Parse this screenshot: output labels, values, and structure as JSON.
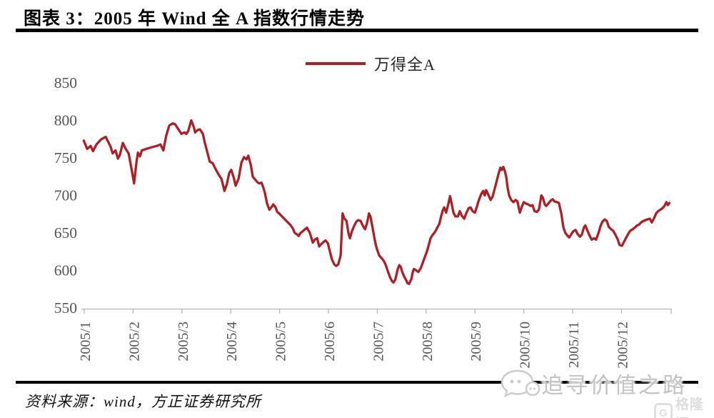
{
  "figure": {
    "title": "图表 3：2005 年 Wind 全 A 指数行情走势",
    "source": "资料来源：wind，方正证券研究所"
  },
  "watermark": {
    "text": "追寻价值之路",
    "logo_text": "格隆汇",
    "logo_letter": "G"
  },
  "colors": {
    "line": "#B01E24",
    "axis": "#b7b7b7",
    "tick_label": "#555555",
    "rule": "#000000"
  },
  "chart_data": {
    "type": "line",
    "title": "2005 年 Wind 全 A 指数行情走势",
    "legend_position": "top-center",
    "grid": false,
    "ylim": [
      550,
      850
    ],
    "y_ticks": [
      850,
      800,
      750,
      700,
      650,
      600,
      550
    ],
    "x_tick_labels": [
      "2005/1",
      "2005/2",
      "2005/3",
      "2005/4",
      "2005/5",
      "2005/6",
      "2005/7",
      "2005/8",
      "2005/9",
      "2005/10",
      "2005/11",
      "2005/12"
    ],
    "x_note": "t is month number of 2005; fractional part = position within month",
    "series": [
      {
        "name": "万得全A",
        "points": [
          [
            0.99,
            773
          ],
          [
            1.06,
            762
          ],
          [
            1.13,
            766
          ],
          [
            1.18,
            759
          ],
          [
            1.25,
            768
          ],
          [
            1.35,
            775
          ],
          [
            1.44,
            778
          ],
          [
            1.54,
            765
          ],
          [
            1.58,
            756
          ],
          [
            1.64,
            760
          ],
          [
            1.69,
            749
          ],
          [
            1.73,
            754
          ],
          [
            1.79,
            770
          ],
          [
            1.85,
            762
          ],
          [
            1.91,
            756
          ],
          [
            1.96,
            738
          ],
          [
            2.02,
            716
          ],
          [
            2.07,
            745
          ],
          [
            2.1,
            757
          ],
          [
            2.14,
            752
          ],
          [
            2.18,
            760
          ],
          [
            2.27,
            762
          ],
          [
            2.37,
            764
          ],
          [
            2.49,
            766
          ],
          [
            2.56,
            768
          ],
          [
            2.62,
            760
          ],
          [
            2.68,
            780
          ],
          [
            2.74,
            793
          ],
          [
            2.81,
            796
          ],
          [
            2.86,
            795
          ],
          [
            2.93,
            788
          ],
          [
            2.99,
            782
          ],
          [
            3.05,
            784
          ],
          [
            3.09,
            782
          ],
          [
            3.13,
            786
          ],
          [
            3.19,
            800
          ],
          [
            3.24,
            792
          ],
          [
            3.27,
            784
          ],
          [
            3.32,
            787
          ],
          [
            3.37,
            788
          ],
          [
            3.43,
            782
          ],
          [
            3.47,
            770
          ],
          [
            3.53,
            755
          ],
          [
            3.57,
            745
          ],
          [
            3.63,
            743
          ],
          [
            3.69,
            735
          ],
          [
            3.75,
            728
          ],
          [
            3.81,
            722
          ],
          [
            3.87,
            706
          ],
          [
            3.92,
            715
          ],
          [
            3.97,
            730
          ],
          [
            4.01,
            734
          ],
          [
            4.06,
            724
          ],
          [
            4.1,
            713
          ],
          [
            4.16,
            722
          ],
          [
            4.22,
            744
          ],
          [
            4.27,
            751
          ],
          [
            4.32,
            748
          ],
          [
            4.36,
            753
          ],
          [
            4.41,
            741
          ],
          [
            4.45,
            725
          ],
          [
            4.49,
            722
          ],
          [
            4.54,
            718
          ],
          [
            4.58,
            716
          ],
          [
            4.63,
            717
          ],
          [
            4.67,
            710
          ],
          [
            4.7,
            703
          ],
          [
            4.74,
            690
          ],
          [
            4.79,
            681
          ],
          [
            4.83,
            684
          ],
          [
            4.87,
            688
          ],
          [
            4.92,
            684
          ],
          [
            4.95,
            678
          ],
          [
            4.99,
            676
          ],
          [
            5.05,
            672
          ],
          [
            5.11,
            668
          ],
          [
            5.17,
            664
          ],
          [
            5.23,
            660
          ],
          [
            5.27,
            656
          ],
          [
            5.31,
            650
          ],
          [
            5.36,
            648
          ],
          [
            5.39,
            646
          ],
          [
            5.43,
            650
          ],
          [
            5.47,
            652
          ],
          [
            5.52,
            655
          ],
          [
            5.56,
            657
          ],
          [
            5.62,
            650
          ],
          [
            5.68,
            637
          ],
          [
            5.72,
            641
          ],
          [
            5.77,
            643
          ],
          [
            5.81,
            632
          ],
          [
            5.85,
            635
          ],
          [
            5.9,
            638
          ],
          [
            5.94,
            640
          ],
          [
            5.99,
            636
          ],
          [
            6.03,
            625
          ],
          [
            6.07,
            615
          ],
          [
            6.12,
            608
          ],
          [
            6.16,
            606
          ],
          [
            6.2,
            608
          ],
          [
            6.25,
            620
          ],
          [
            6.29,
            676
          ],
          [
            6.32,
            670
          ],
          [
            6.37,
            666
          ],
          [
            6.41,
            650
          ],
          [
            6.44,
            643
          ],
          [
            6.48,
            652
          ],
          [
            6.53,
            660
          ],
          [
            6.57,
            665
          ],
          [
            6.61,
            667
          ],
          [
            6.66,
            666
          ],
          [
            6.7,
            660
          ],
          [
            6.75,
            655
          ],
          [
            6.79,
            663
          ],
          [
            6.83,
            676
          ],
          [
            6.86,
            672
          ],
          [
            6.91,
            655
          ],
          [
            6.95,
            640
          ],
          [
            6.99,
            629
          ],
          [
            7.04,
            620
          ],
          [
            7.08,
            617
          ],
          [
            7.13,
            613
          ],
          [
            7.17,
            608
          ],
          [
            7.21,
            600
          ],
          [
            7.26,
            591
          ],
          [
            7.3,
            586
          ],
          [
            7.33,
            584
          ],
          [
            7.37,
            588
          ],
          [
            7.42,
            602
          ],
          [
            7.45,
            607
          ],
          [
            7.48,
            605
          ],
          [
            7.51,
            598
          ],
          [
            7.55,
            592
          ],
          [
            7.59,
            587
          ],
          [
            7.62,
            583
          ],
          [
            7.65,
            582
          ],
          [
            7.7,
            589
          ],
          [
            7.72,
            596
          ],
          [
            7.75,
            602
          ],
          [
            7.8,
            600
          ],
          [
            7.84,
            598
          ],
          [
            7.89,
            603
          ],
          [
            7.93,
            610
          ],
          [
            7.97,
            617
          ],
          [
            8.02,
            626
          ],
          [
            8.05,
            633
          ],
          [
            8.09,
            643
          ],
          [
            8.13,
            647
          ],
          [
            8.18,
            651
          ],
          [
            8.22,
            656
          ],
          [
            8.27,
            662
          ],
          [
            8.31,
            673
          ],
          [
            8.34,
            680
          ],
          [
            8.37,
            684
          ],
          [
            8.41,
            677
          ],
          [
            8.46,
            690
          ],
          [
            8.49,
            699
          ],
          [
            8.51,
            693
          ],
          [
            8.56,
            677
          ],
          [
            8.6,
            672
          ],
          [
            8.65,
            672
          ],
          [
            8.69,
            679
          ],
          [
            8.73,
            673
          ],
          [
            8.78,
            669
          ],
          [
            8.82,
            676
          ],
          [
            8.87,
            683
          ],
          [
            8.91,
            684
          ],
          [
            8.95,
            679
          ],
          [
            9.0,
            677
          ],
          [
            9.04,
            685
          ],
          [
            9.08,
            694
          ],
          [
            9.13,
            702
          ],
          [
            9.17,
            706
          ],
          [
            9.2,
            700
          ],
          [
            9.23,
            707
          ],
          [
            9.28,
            700
          ],
          [
            9.32,
            694
          ],
          [
            9.36,
            698
          ],
          [
            9.41,
            710
          ],
          [
            9.44,
            718
          ],
          [
            9.48,
            728
          ],
          [
            9.52,
            737
          ],
          [
            9.55,
            734
          ],
          [
            9.58,
            738
          ],
          [
            9.61,
            733
          ],
          [
            9.64,
            725
          ],
          [
            9.67,
            710
          ],
          [
            9.7,
            700
          ],
          [
            9.74,
            694
          ],
          [
            9.79,
            691
          ],
          [
            9.83,
            694
          ],
          [
            9.87,
            692
          ],
          [
            9.92,
            677
          ],
          [
            9.96,
            685
          ],
          [
            10.0,
            691
          ],
          [
            10.05,
            689
          ],
          [
            10.09,
            688
          ],
          [
            10.14,
            686
          ],
          [
            10.18,
            687
          ],
          [
            10.22,
            679
          ],
          [
            10.27,
            678
          ],
          [
            10.31,
            681
          ],
          [
            10.36,
            700
          ],
          [
            10.39,
            697
          ],
          [
            10.43,
            688
          ],
          [
            10.46,
            686
          ],
          [
            10.5,
            689
          ],
          [
            10.55,
            693
          ],
          [
            10.59,
            695
          ],
          [
            10.63,
            692
          ],
          [
            10.68,
            691
          ],
          [
            10.72,
            690
          ],
          [
            10.77,
            675
          ],
          [
            10.81,
            658
          ],
          [
            10.85,
            650
          ],
          [
            10.9,
            646
          ],
          [
            10.93,
            644
          ],
          [
            10.97,
            648
          ],
          [
            11.01,
            652
          ],
          [
            11.06,
            654
          ],
          [
            11.1,
            649
          ],
          [
            11.15,
            645
          ],
          [
            11.19,
            648
          ],
          [
            11.23,
            657
          ],
          [
            11.26,
            660
          ],
          [
            11.31,
            652
          ],
          [
            11.35,
            646
          ],
          [
            11.39,
            641
          ],
          [
            11.44,
            643
          ],
          [
            11.48,
            641
          ],
          [
            11.53,
            650
          ],
          [
            11.57,
            659
          ],
          [
            11.61,
            665
          ],
          [
            11.66,
            668
          ],
          [
            11.7,
            666
          ],
          [
            11.74,
            658
          ],
          [
            11.79,
            655
          ],
          [
            11.83,
            653
          ],
          [
            11.88,
            647
          ],
          [
            11.92,
            642
          ],
          [
            11.96,
            634
          ],
          [
            12.01,
            633
          ],
          [
            12.05,
            638
          ],
          [
            12.1,
            644
          ],
          [
            12.14,
            649
          ],
          [
            12.18,
            653
          ],
          [
            12.23,
            655
          ],
          [
            12.27,
            657
          ],
          [
            12.32,
            660
          ],
          [
            12.36,
            661
          ],
          [
            12.4,
            664
          ],
          [
            12.45,
            666
          ],
          [
            12.49,
            667
          ],
          [
            12.53,
            668
          ],
          [
            12.58,
            669
          ],
          [
            12.62,
            664
          ],
          [
            12.67,
            670
          ],
          [
            12.71,
            676
          ],
          [
            12.75,
            679
          ],
          [
            12.8,
            681
          ],
          [
            12.84,
            683
          ],
          [
            12.88,
            686
          ],
          [
            12.92,
            691
          ],
          [
            12.95,
            687
          ],
          [
            12.98,
            690
          ]
        ]
      }
    ]
  }
}
